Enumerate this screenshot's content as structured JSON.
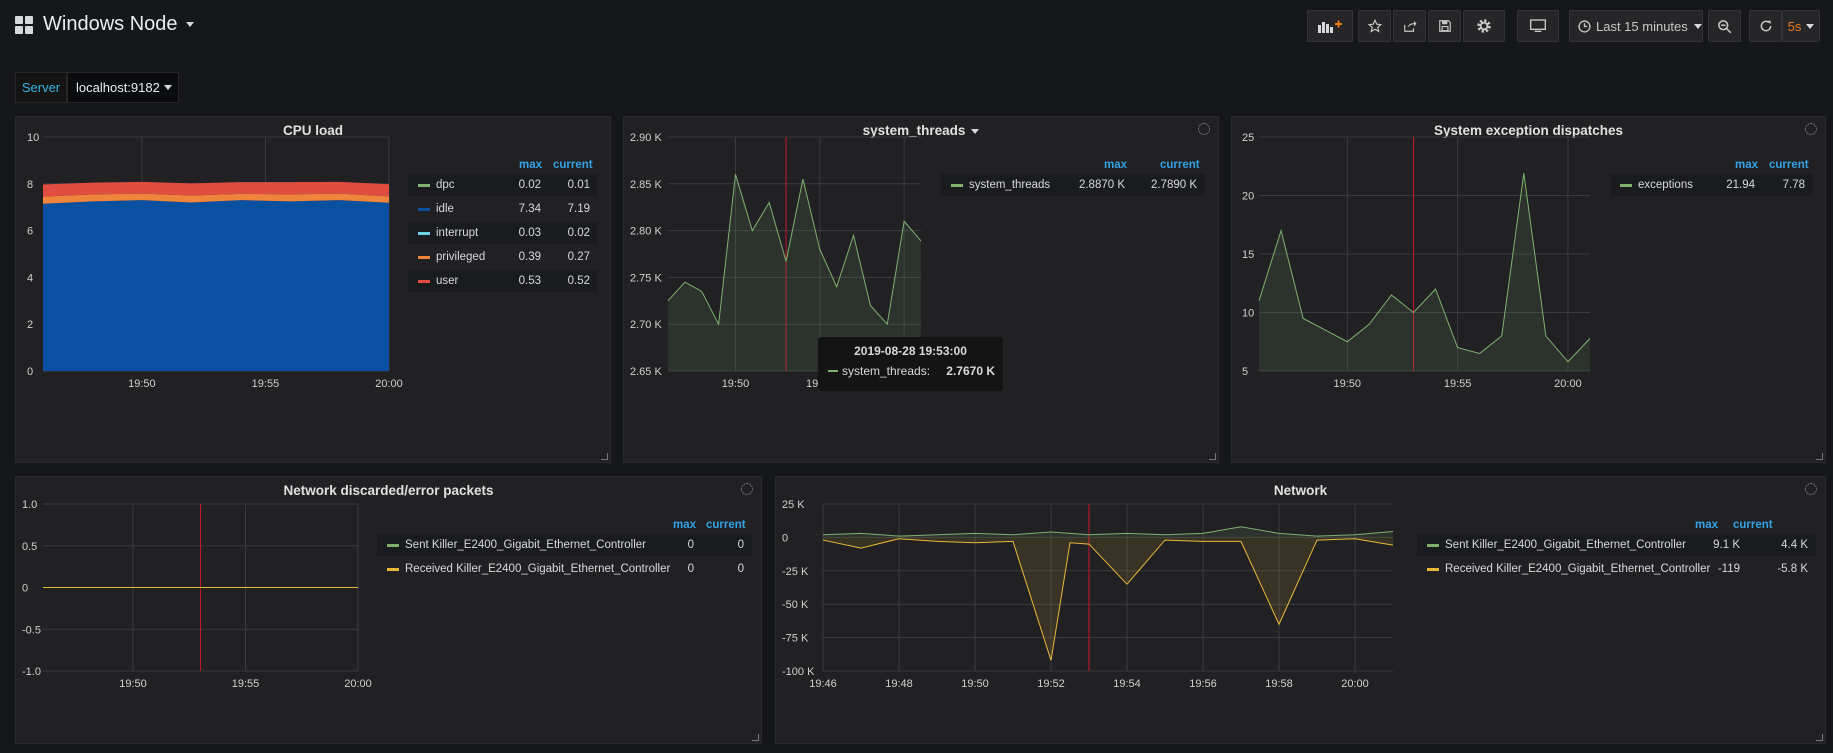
{
  "header": {
    "title": "Windows Node",
    "time_range": "Last 15 minutes",
    "refresh_interval": "5s",
    "refresh_color": "#eb7b18"
  },
  "variables": {
    "server_label": "Server",
    "server_value": "localhost:9182"
  },
  "legend_headers": {
    "max": "max",
    "current": "current"
  },
  "panels": {
    "cpu": {
      "title": "CPU load",
      "legend": [
        {
          "name": "dpc",
          "max": "0.02",
          "current": "0.01",
          "color": "#7eb26d"
        },
        {
          "name": "idle",
          "max": "7.34",
          "current": "7.19",
          "color": "#0a50a1"
        },
        {
          "name": "interrupt",
          "max": "0.03",
          "current": "0.02",
          "color": "#6ed0e0"
        },
        {
          "name": "privileged",
          "max": "0.39",
          "current": "0.27",
          "color": "#ef843c"
        },
        {
          "name": "user",
          "max": "0.53",
          "current": "0.52",
          "color": "#e24d42"
        }
      ]
    },
    "threads": {
      "title": "system_threads",
      "legend": [
        {
          "name": "system_threads",
          "max": "2.8870 K",
          "current": "2.7890 K",
          "color": "#7eb26d"
        }
      ],
      "tooltip": {
        "time": "2019-08-28 19:53:00",
        "series": "system_threads:",
        "value": "2.7670 K"
      }
    },
    "exceptions": {
      "title": "System exception dispatches",
      "legend": [
        {
          "name": "exceptions",
          "max": "21.94",
          "current": "7.78",
          "color": "#7eb26d"
        }
      ]
    },
    "net_err": {
      "title": "Network discarded/error packets",
      "legend": [
        {
          "name": "Sent Killer_E2400_Gigabit_Ethernet_Controller",
          "max": "0",
          "current": "0",
          "color": "#7eb26d"
        },
        {
          "name": "Received Killer_E2400_Gigabit_Ethernet_Controller",
          "max": "0",
          "current": "0",
          "color": "#eab839"
        }
      ]
    },
    "network": {
      "title": "Network",
      "legend": [
        {
          "name": "Sent Killer_E2400_Gigabit_Ethernet_Controller",
          "max": "9.1 K",
          "current": "4.4 K",
          "color": "#7eb26d"
        },
        {
          "name": "Received Killer_E2400_Gigabit_Ethernet_Controller",
          "max": "-119",
          "current": "-5.8 K",
          "color": "#eab839"
        }
      ]
    }
  },
  "chart_data": [
    {
      "type": "area",
      "stacked": true,
      "x": [
        "19:46",
        "19:48",
        "19:50",
        "19:52",
        "19:54",
        "19:56",
        "19:58",
        "20:00"
      ],
      "xticks": [
        "19:50",
        "19:55",
        "20:00"
      ],
      "yticks": [
        "0",
        "2",
        "4",
        "6",
        "8",
        "10"
      ],
      "ylim": [
        0,
        10
      ],
      "series": [
        {
          "name": "idle",
          "values": [
            7.15,
            7.25,
            7.3,
            7.2,
            7.3,
            7.25,
            7.3,
            7.19
          ]
        },
        {
          "name": "privileged",
          "values": [
            0.3,
            0.3,
            0.28,
            0.3,
            0.27,
            0.3,
            0.28,
            0.27
          ]
        },
        {
          "name": "user",
          "values": [
            0.52,
            0.5,
            0.5,
            0.52,
            0.5,
            0.52,
            0.5,
            0.52
          ]
        }
      ]
    },
    {
      "type": "line",
      "x": [
        "19:46",
        "19:47",
        "19:48",
        "19:49",
        "19:50",
        "19:51",
        "19:52",
        "19:53",
        "19:54",
        "19:55",
        "19:56",
        "19:57",
        "19:58",
        "19:59",
        "20:00",
        "20:01"
      ],
      "xticks": [
        "19:50",
        "19:55",
        "20:00"
      ],
      "yticks": [
        "2.65 K",
        "2.70 K",
        "2.75 K",
        "2.80 K",
        "2.85 K",
        "2.90 K"
      ],
      "ylim": [
        2.65,
        2.9
      ],
      "series": [
        {
          "name": "system_threads",
          "values": [
            2.725,
            2.745,
            2.735,
            2.7,
            2.86,
            2.8,
            2.83,
            2.767,
            2.855,
            2.78,
            2.74,
            2.795,
            2.72,
            2.7,
            2.81,
            2.789
          ]
        }
      ]
    },
    {
      "type": "line",
      "x": [
        "19:46",
        "19:47",
        "19:48",
        "19:49",
        "19:50",
        "19:51",
        "19:52",
        "19:53",
        "19:54",
        "19:55",
        "19:56",
        "19:57",
        "19:58",
        "19:59",
        "20:00",
        "20:01"
      ],
      "xticks": [
        "19:50",
        "19:55",
        "20:00"
      ],
      "yticks": [
        "5",
        "10",
        "15",
        "20",
        "25"
      ],
      "ylim": [
        5,
        25
      ],
      "series": [
        {
          "name": "exceptions",
          "values": [
            11,
            17,
            9.5,
            8.5,
            7.5,
            9,
            11.5,
            10,
            12,
            7,
            6.5,
            8,
            21.9,
            8,
            5.8,
            7.78
          ]
        }
      ]
    },
    {
      "type": "line",
      "x": [
        "19:46",
        "19:48",
        "19:50",
        "19:52",
        "19:54",
        "19:56",
        "19:58",
        "20:00"
      ],
      "xticks": [
        "19:50",
        "19:55",
        "20:00"
      ],
      "yticks": [
        "-1.0",
        "-0.5",
        "0",
        "0.5",
        "1.0"
      ],
      "ylim": [
        -1,
        1
      ],
      "series": [
        {
          "name": "Received Killer_E2400_Gigabit_Ethernet_Controller",
          "values": [
            0,
            0,
            0,
            0,
            0,
            0,
            0,
            0
          ]
        }
      ]
    },
    {
      "type": "line",
      "x": [
        "19:46",
        "19:47",
        "19:48",
        "19:49",
        "19:50",
        "19:51",
        "19:52",
        "19:52.5",
        "19:53",
        "19:54",
        "19:55",
        "19:56",
        "19:57",
        "19:58",
        "19:59",
        "20:00",
        "20:01"
      ],
      "xticks": [
        "19:46",
        "19:48",
        "19:50",
        "19:52",
        "19:54",
        "19:56",
        "19:58",
        "20:00"
      ],
      "yticks": [
        "-100 K",
        "-75 K",
        "-50 K",
        "-25 K",
        "0",
        "25 K"
      ],
      "ylim": [
        -100,
        25
      ],
      "series": [
        {
          "name": "Sent Killer_E2400_Gigabit_Ethernet_Controller",
          "values": [
            2,
            3,
            1,
            2,
            3,
            2,
            4,
            3,
            2,
            3,
            2,
            3,
            8,
            3,
            1,
            2,
            4.4
          ]
        },
        {
          "name": "Received Killer_E2400_Gigabit_Ethernet_Controller",
          "values": [
            -2,
            -8,
            -1,
            -3,
            -4,
            -3,
            -92,
            -4,
            -5,
            -35,
            -2,
            -3,
            -3,
            -65,
            -2,
            -1,
            -5.8
          ]
        }
      ]
    }
  ]
}
